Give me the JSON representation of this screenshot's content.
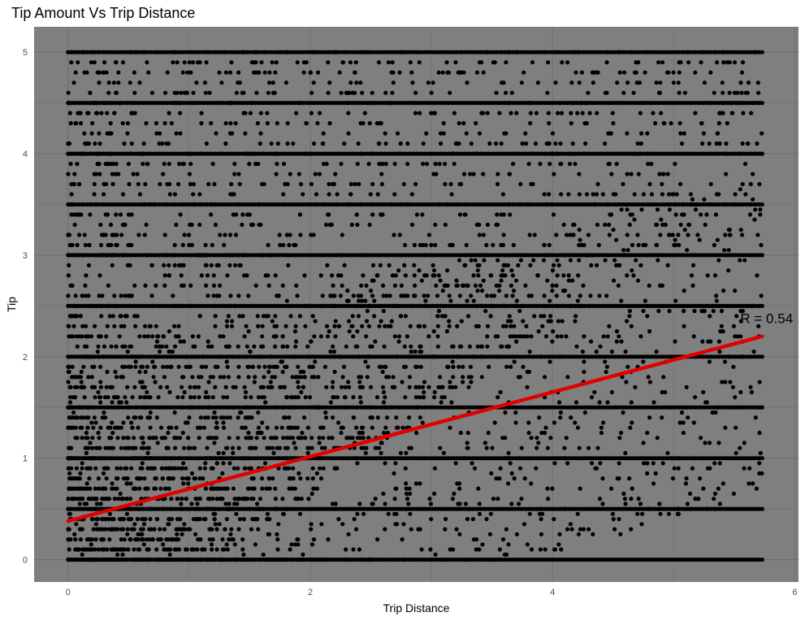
{
  "chart_data": {
    "type": "scatter",
    "title": "Tip Amount Vs Trip Distance",
    "xlabel": "Trip Distance",
    "ylabel": "Tip",
    "xlim": [
      -0.28,
      6.03
    ],
    "ylim": [
      -0.22,
      5.25
    ],
    "x_ticks": [
      "0",
      "2",
      "4",
      "6"
    ],
    "y_ticks": [
      "0",
      "1",
      "2",
      "3",
      "4",
      "5"
    ],
    "x_tick_values": [
      0,
      2,
      4,
      6
    ],
    "y_tick_values": [
      0,
      1,
      2,
      3,
      4,
      5
    ],
    "grid": true,
    "legend": "none",
    "colors": {
      "panel": "#7f7f7f",
      "grid": "#6e6e6e",
      "points": "#000000",
      "fit_line": "#e00000"
    },
    "points_note_range": {
      "x": [
        0,
        5.73
      ],
      "y": [
        0,
        5
      ]
    },
    "dense_tip_levels": [
      0,
      0.5,
      1,
      1.5,
      2,
      2.5,
      3,
      3.5,
      4,
      4.5,
      5
    ],
    "fit_line": {
      "x": [
        0,
        5.73
      ],
      "y": [
        0.38,
        2.2
      ]
    },
    "annotation": {
      "text": "R =  0.54",
      "x": 5.55,
      "y": 2.38
    }
  }
}
